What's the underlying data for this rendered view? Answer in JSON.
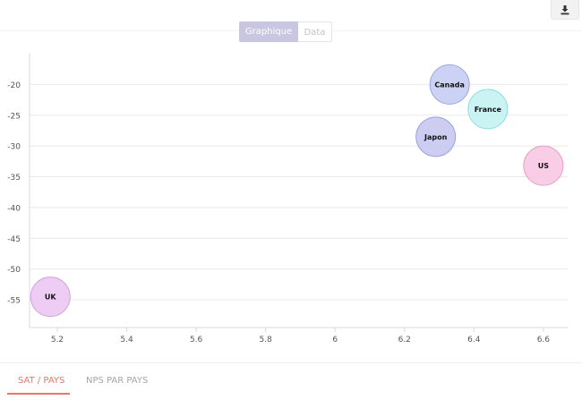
{
  "toolbar": {
    "download_icon": "download-icon"
  },
  "view_toggle": {
    "options": [
      "Graphique",
      "Data"
    ],
    "selected": "Graphique"
  },
  "tabs": [
    {
      "label": "SAT / PAYS",
      "active": true
    },
    {
      "label": "NPS PAR PAYS",
      "active": false
    }
  ],
  "colors": {
    "accent": "#e8766a",
    "toggle_active": "#c9c6e2"
  },
  "chart_data": {
    "type": "scatter",
    "title": "",
    "xlabel": "",
    "ylabel": "",
    "xlim": [
      5.12,
      6.67
    ],
    "ylim": [
      -59.5,
      -15
    ],
    "xticks": [
      5.2,
      5.4,
      5.6,
      5.8,
      6,
      6.2,
      6.4,
      6.6
    ],
    "xtick_labels": [
      "5.2",
      "5.4",
      "5.6",
      "5.8",
      "6",
      "6.2",
      "6.4",
      "6.6"
    ],
    "yticks": [
      -20,
      -25,
      -30,
      -35,
      -40,
      -45,
      -50,
      -55
    ],
    "ytick_labels": [
      "-20",
      "-25",
      "-30",
      "-35",
      "-40",
      "-45",
      "-50",
      "-55"
    ],
    "grid": "horizontal",
    "points": [
      {
        "label": "Canada",
        "x": 6.33,
        "y": -20,
        "fill": "#c6cdf2",
        "stroke": "#9ea8e3"
      },
      {
        "label": "France",
        "x": 6.44,
        "y": -24,
        "fill": "#c4f2f3",
        "stroke": "#8edde1"
      },
      {
        "label": "Japon",
        "x": 6.29,
        "y": -28.5,
        "fill": "#c6c8ef",
        "stroke": "#9fa3e0"
      },
      {
        "label": "US",
        "x": 6.6,
        "y": -33.2,
        "fill": "#f8c8e3",
        "stroke": "#eaa0c8"
      },
      {
        "label": "UK",
        "x": 5.18,
        "y": -54.5,
        "fill": "#ebc8f2",
        "stroke": "#d5a0e3"
      }
    ]
  }
}
